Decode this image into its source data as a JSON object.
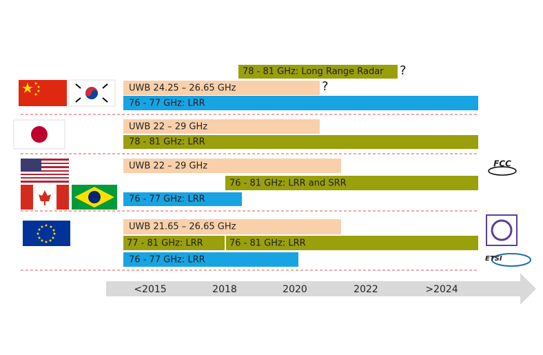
{
  "bands": [
    {
      "bars": [
        "78 - 81 GHz: Long Range Radar",
        "UWB 24.25 – 26.65 GHz",
        "76 - 77 GHz: LRR"
      ],
      "marks": [
        "?",
        "?"
      ]
    },
    {
      "bars": [
        "UWB 22 – 29 GHz",
        "78 - 81 GHz: LRR"
      ]
    },
    {
      "bars": [
        "UWB 22 – 29 GHz",
        "76 - 81 GHz: LRR and SRR",
        "76 - 77 GHz: LRR"
      ],
      "logo": "FCC"
    },
    {
      "bars": [
        "UWB 21.65 – 26.65 GHz",
        "77 - 81 GHz: LRR",
        "76 - 81 GHz: LRR",
        "76 - 77 GHz: LRR"
      ],
      "logo": "ETSI"
    }
  ],
  "timeline": [
    "<2015",
    "2018",
    "2020",
    "2022",
    ">2024"
  ]
}
